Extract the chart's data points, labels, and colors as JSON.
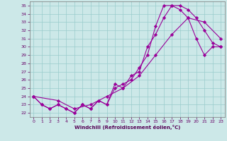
{
  "xlabel": "Windchill (Refroidissement éolien,°C)",
  "bg_color": "#cce8e8",
  "line_color": "#990099",
  "marker": "D",
  "markersize": 2.2,
  "linewidth": 0.8,
  "xlim": [
    -0.5,
    23.5
  ],
  "ylim": [
    21.5,
    35.5
  ],
  "xticks": [
    0,
    1,
    2,
    3,
    4,
    5,
    6,
    7,
    8,
    9,
    10,
    11,
    12,
    13,
    14,
    15,
    16,
    17,
    18,
    19,
    20,
    21,
    22,
    23
  ],
  "yticks": [
    22,
    23,
    24,
    25,
    26,
    27,
    28,
    29,
    30,
    31,
    32,
    33,
    34,
    35
  ],
  "series1": [
    [
      0,
      24.0
    ],
    [
      1,
      23.0
    ],
    [
      2,
      22.5
    ],
    [
      3,
      23.0
    ],
    [
      4,
      22.5
    ],
    [
      5,
      22.0
    ],
    [
      6,
      23.0
    ],
    [
      7,
      22.5
    ],
    [
      8,
      23.5
    ],
    [
      9,
      23.0
    ],
    [
      10,
      25.5
    ],
    [
      11,
      25.0
    ],
    [
      12,
      26.5
    ],
    [
      13,
      27.0
    ],
    [
      14,
      30.0
    ],
    [
      15,
      31.5
    ],
    [
      16,
      33.5
    ],
    [
      17,
      35.0
    ],
    [
      18,
      35.0
    ],
    [
      19,
      34.5
    ],
    [
      20,
      33.5
    ],
    [
      21,
      32.0
    ],
    [
      22,
      30.5
    ],
    [
      23,
      30.0
    ]
  ],
  "series2": [
    [
      0,
      24.0
    ],
    [
      1,
      23.0
    ],
    [
      2,
      22.5
    ],
    [
      3,
      23.0
    ],
    [
      4,
      22.5
    ],
    [
      5,
      22.0
    ],
    [
      6,
      23.0
    ],
    [
      7,
      22.5
    ],
    [
      8,
      23.5
    ],
    [
      9,
      23.0
    ],
    [
      10,
      25.0
    ],
    [
      11,
      25.5
    ],
    [
      12,
      26.0
    ],
    [
      13,
      27.5
    ],
    [
      14,
      29.0
    ],
    [
      15,
      32.5
    ],
    [
      16,
      35.0
    ],
    [
      17,
      35.0
    ],
    [
      18,
      34.5
    ],
    [
      19,
      33.5
    ],
    [
      20,
      31.0
    ],
    [
      21,
      29.0
    ],
    [
      22,
      30.0
    ],
    [
      23,
      30.0
    ]
  ],
  "series3": [
    [
      0,
      24.0
    ],
    [
      3,
      23.5
    ],
    [
      5,
      22.5
    ],
    [
      7,
      23.0
    ],
    [
      9,
      24.0
    ],
    [
      11,
      25.0
    ],
    [
      13,
      26.5
    ],
    [
      15,
      29.0
    ],
    [
      17,
      31.5
    ],
    [
      19,
      33.5
    ],
    [
      21,
      33.0
    ],
    [
      23,
      31.0
    ]
  ]
}
